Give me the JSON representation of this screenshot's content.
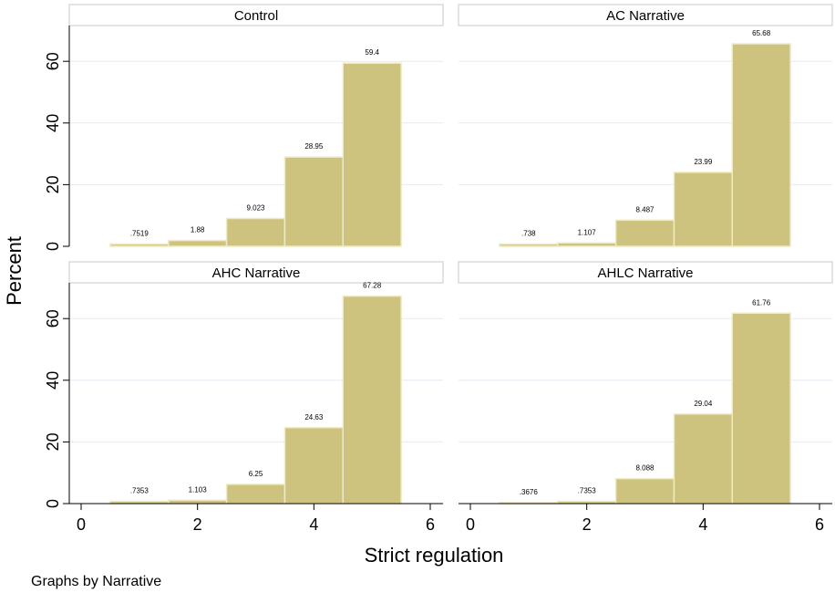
{
  "chart_data": {
    "type": "bar",
    "ylabel": "Percent",
    "xlabel": "Strict regulation",
    "note": "Graphs by Narrative",
    "xlim": [
      0,
      6
    ],
    "ylim": [
      0,
      70
    ],
    "xticks": [
      0,
      2,
      4,
      6
    ],
    "yticks": [
      0,
      20,
      40,
      60
    ],
    "bin_width": 1,
    "grid": true,
    "panels": [
      {
        "title": "Control",
        "x": [
          1,
          2,
          3,
          4,
          5
        ],
        "values": [
          0.7519,
          1.88,
          9.023,
          28.95,
          59.4
        ],
        "labels": [
          ".7519",
          "1.88",
          "9.023",
          "28.95",
          "59.4"
        ]
      },
      {
        "title": "AC Narrative",
        "x": [
          1,
          2,
          3,
          4,
          5
        ],
        "values": [
          0.738,
          1.107,
          8.487,
          23.99,
          65.68
        ],
        "labels": [
          ".738",
          "1.107",
          "8.487",
          "23.99",
          "65.68"
        ]
      },
      {
        "title": "AHC Narrative",
        "x": [
          1,
          2,
          3,
          4,
          5
        ],
        "values": [
          0.7353,
          1.103,
          6.25,
          24.63,
          67.28
        ],
        "labels": [
          ".7353",
          "1.103",
          "6.25",
          "24.63",
          "67.28"
        ]
      },
      {
        "title": "AHLC Narrative",
        "x": [
          1,
          2,
          3,
          4,
          5
        ],
        "values": [
          0.3676,
          0.7353,
          8.088,
          29.04,
          61.76
        ],
        "labels": [
          ".3676",
          ".7353",
          "8.088",
          "29.04",
          "61.76"
        ]
      }
    ]
  }
}
